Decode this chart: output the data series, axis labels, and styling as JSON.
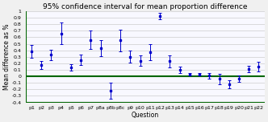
{
  "title": "95% confidence interval for mean proportion difference",
  "xlabel": "Question",
  "ylabel": "Mean difference as %",
  "categories": [
    "p1",
    "p2",
    "p3",
    "p4",
    "p5",
    "p6",
    "p7",
    "p8a",
    "p8b",
    "p8c",
    "p9",
    "p10",
    "p11",
    "p12",
    "p13",
    "p14",
    "p15",
    "p16",
    "p17",
    "p18",
    "p19",
    "p20",
    "p21",
    "p22"
  ],
  "means": [
    0.38,
    0.17,
    0.33,
    0.66,
    0.14,
    0.25,
    0.56,
    0.43,
    -0.22,
    0.55,
    0.3,
    0.24,
    0.37,
    0.93,
    0.23,
    0.1,
    0.03,
    0.03,
    0.01,
    -0.04,
    -0.12,
    -0.04,
    0.11,
    0.15
  ],
  "yerr_low": [
    0.1,
    0.06,
    0.08,
    0.17,
    0.05,
    0.08,
    0.14,
    0.12,
    0.12,
    0.17,
    0.09,
    0.08,
    0.12,
    0.05,
    0.09,
    0.05,
    0.02,
    0.02,
    0.04,
    0.08,
    0.06,
    0.05,
    0.05,
    0.07
  ],
  "yerr_high": [
    0.1,
    0.06,
    0.08,
    0.17,
    0.05,
    0.08,
    0.14,
    0.12,
    0.12,
    0.17,
    0.09,
    0.08,
    0.12,
    0.05,
    0.09,
    0.05,
    0.02,
    0.02,
    0.04,
    0.08,
    0.06,
    0.05,
    0.05,
    0.07
  ],
  "ylim": [
    -0.4,
    1.0
  ],
  "yticks": [
    -0.4,
    -0.3,
    -0.2,
    -0.1,
    0.0,
    0.1,
    0.2,
    0.3,
    0.4,
    0.5,
    0.6,
    0.7,
    0.8,
    0.9,
    1.0
  ],
  "point_color": "#0000cc",
  "zero_line_color": "#006600",
  "bottom_line_color": "#006600",
  "bg_color": "#f0f0f0",
  "plot_bg": "#f8f8ff",
  "grid_color": "#cccccc",
  "title_fontsize": 6.5,
  "label_fontsize": 5.5,
  "tick_fontsize": 4.5
}
